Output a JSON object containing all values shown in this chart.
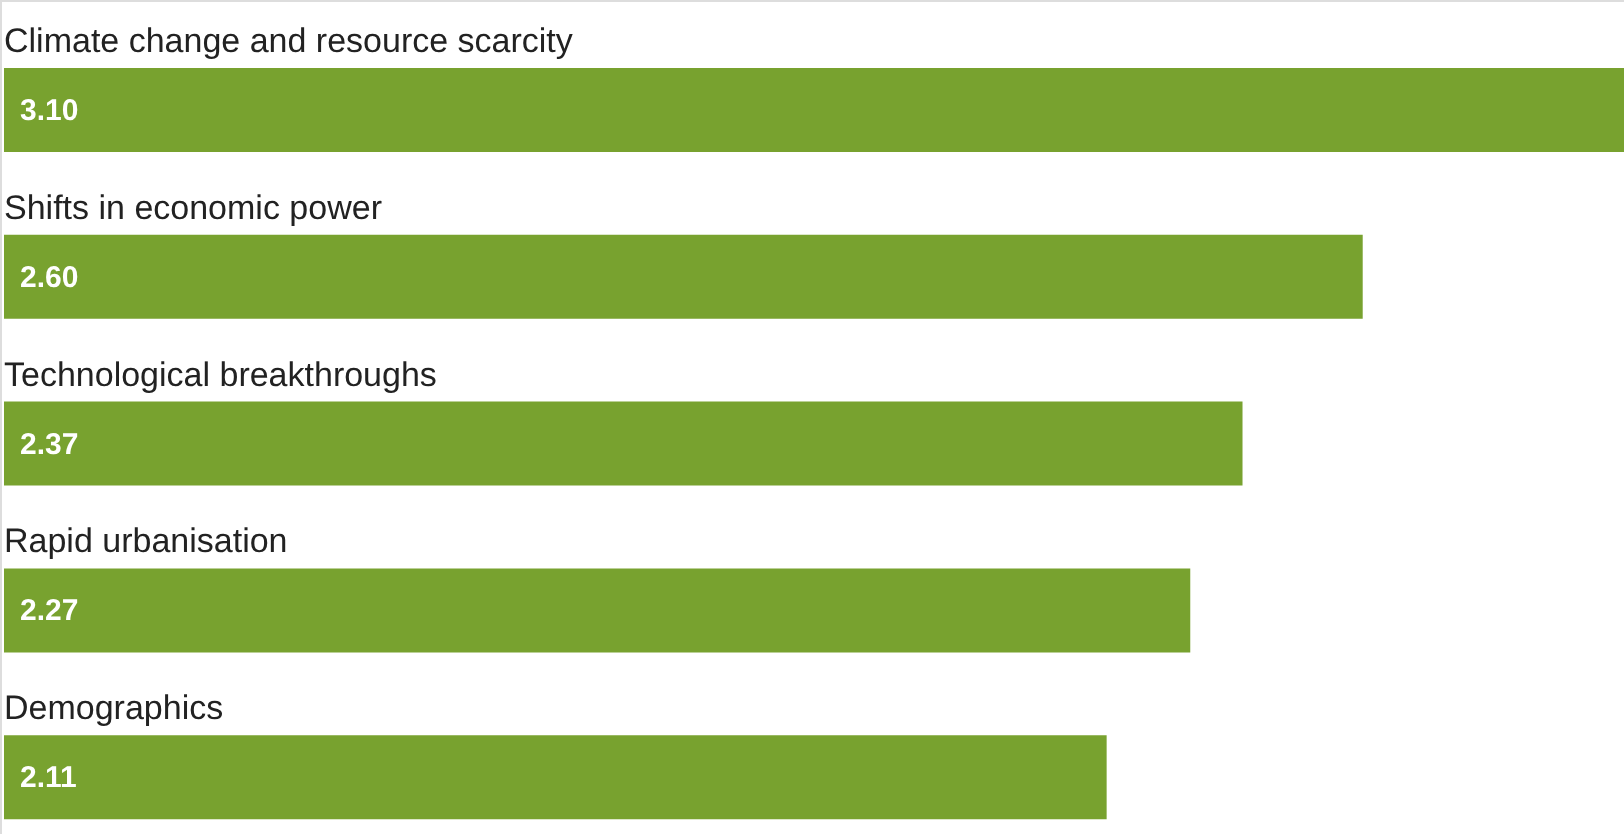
{
  "chart_data": {
    "type": "bar",
    "orientation": "horizontal",
    "categories": [
      "Climate change and resource scarcity",
      "Shifts in economic power",
      "Technological breakthroughs",
      "Rapid urbanisation",
      "Demographics"
    ],
    "values": [
      3.1,
      2.6,
      2.37,
      2.27,
      2.11
    ],
    "value_labels": [
      "3.10",
      "2.60",
      "2.37",
      "2.27",
      "2.11"
    ],
    "color": "#78a22f",
    "xlim": [
      0,
      3.1
    ]
  }
}
